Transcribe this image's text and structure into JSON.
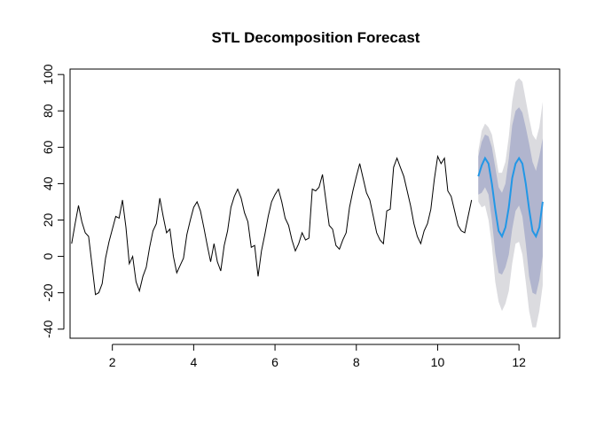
{
  "chart_data": {
    "type": "line",
    "title": "STL Decomposition Forecast",
    "xlabel": "",
    "ylabel": "",
    "xlim": [
      0.96,
      13.0
    ],
    "ylim": [
      -45,
      103
    ],
    "xticks": [
      2,
      4,
      6,
      8,
      10,
      12
    ],
    "yticks": [
      -40,
      -20,
      0,
      20,
      40,
      60,
      80,
      100
    ],
    "grid": false,
    "legend": "none",
    "colors": {
      "history": "#000000",
      "forecast": "#2297e6",
      "band80": "#b1b5ce",
      "band95": "#dbdbdf"
    },
    "series": [
      {
        "role": "history",
        "start": 1.0,
        "step": 0.0833333,
        "values": [
          7,
          18,
          28,
          19,
          13,
          11,
          -5,
          -21,
          -20,
          -15,
          -1,
          8,
          15,
          22,
          21,
          31,
          16,
          -4,
          0,
          -14,
          -19,
          -11,
          -6,
          5,
          14,
          18,
          32,
          22,
          13,
          15,
          0,
          -9,
          -5,
          -1,
          12,
          20,
          27,
          30,
          25,
          16,
          6,
          -3,
          7,
          -3,
          -8,
          6,
          14,
          27,
          33,
          37,
          32,
          24,
          19,
          5,
          6,
          -11,
          3,
          12,
          22,
          30,
          34,
          37,
          30,
          21,
          17,
          9,
          3,
          7,
          13,
          9,
          10,
          37,
          36,
          38,
          45,
          31,
          17,
          15,
          6,
          4,
          9,
          13,
          27,
          36,
          44,
          51,
          43,
          35,
          31,
          22,
          13,
          9,
          7,
          25,
          26,
          49,
          54,
          49,
          44,
          36,
          28,
          18,
          11,
          7,
          14,
          18,
          26,
          42,
          55,
          51,
          54,
          36,
          33,
          25,
          17,
          14,
          13,
          22,
          31
        ]
      },
      {
        "role": "forecast",
        "start": 11.0,
        "step": 0.0833333,
        "values": [
          44,
          50,
          54,
          51,
          40,
          26,
          14,
          11,
          16,
          27,
          43,
          51,
          54,
          51,
          40,
          26,
          14,
          11,
          16,
          30
        ],
        "lo80": [
          34,
          35,
          38,
          34,
          20,
          2,
          -9,
          -10,
          -6,
          1,
          15,
          25,
          28,
          22,
          7,
          -11,
          -20,
          -21,
          -13,
          0
        ],
        "hi80": [
          55,
          63,
          67,
          66,
          60,
          49,
          38,
          35,
          40,
          54,
          72,
          80,
          82,
          79,
          71,
          62,
          52,
          47,
          55,
          65
        ],
        "lo95": [
          30,
          27,
          28,
          20,
          6,
          -14,
          -25,
          -30,
          -26,
          -19,
          -4,
          7,
          8,
          1,
          -14,
          -30,
          -39,
          -39,
          -30,
          -16
        ],
        "hi95": [
          58,
          69,
          73,
          71,
          67,
          57,
          46,
          46,
          52,
          66,
          85,
          96,
          98,
          96,
          86,
          76,
          67,
          64,
          71,
          85
        ]
      }
    ]
  }
}
